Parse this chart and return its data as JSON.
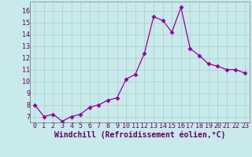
{
  "x": [
    0,
    1,
    2,
    3,
    4,
    5,
    6,
    7,
    8,
    9,
    10,
    11,
    12,
    13,
    14,
    15,
    16,
    17,
    18,
    19,
    20,
    21,
    22,
    23
  ],
  "y": [
    8.0,
    7.0,
    7.2,
    6.6,
    7.0,
    7.2,
    7.8,
    8.0,
    8.4,
    8.6,
    10.2,
    10.6,
    12.4,
    15.5,
    15.2,
    14.2,
    16.3,
    12.8,
    12.2,
    11.5,
    11.3,
    11.0,
    11.0,
    10.7
  ],
  "line_color": "#990099",
  "marker": "D",
  "marker_size": 2.5,
  "bg_color": "#c8eaea",
  "grid_color": "#aacccc",
  "xlabel": "Windchill (Refroidissement éolien,°C)",
  "xlabel_color": "#660066",
  "xlabel_fontsize": 7,
  "tick_color": "#660066",
  "tick_fontsize": 6,
  "ylim": [
    6.5,
    16.8
  ],
  "xlim": [
    -0.5,
    23.5
  ],
  "yticks": [
    7,
    8,
    9,
    10,
    11,
    12,
    13,
    14,
    15,
    16
  ],
  "xticks": [
    0,
    1,
    2,
    3,
    4,
    5,
    6,
    7,
    8,
    9,
    10,
    11,
    12,
    13,
    14,
    15,
    16,
    17,
    18,
    19,
    20,
    21,
    22,
    23
  ]
}
